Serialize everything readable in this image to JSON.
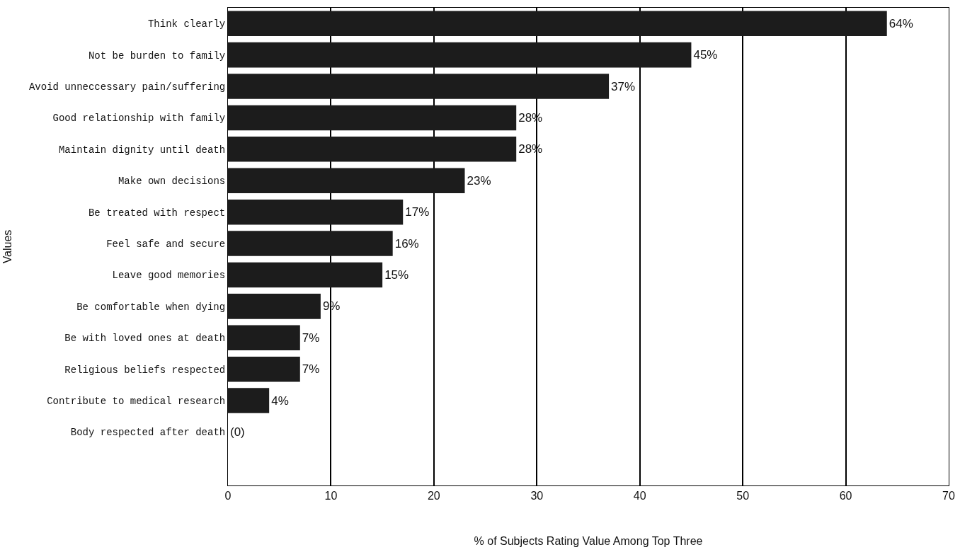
{
  "chart_data": {
    "type": "bar",
    "orientation": "horizontal",
    "xlabel": "% of Subjects Rating Value Among Top Three",
    "ylabel": "Values",
    "categories": [
      "Think clearly",
      "Not be burden to family",
      "Avoid unneccessary pain/suffering",
      "Good relationship with family",
      "Maintain dignity until death",
      "Make own decisions",
      "Be treated with respect",
      "Feel safe and secure",
      "Leave good memories",
      "Be comfortable when dying",
      "Be with loved ones at death",
      "Religious beliefs respected",
      "Contribute to medical research",
      "Body respected after death"
    ],
    "values": [
      64,
      45,
      37,
      28,
      28,
      23,
      17,
      16,
      15,
      9,
      7,
      7,
      4,
      0
    ],
    "value_labels": [
      "64%",
      "45%",
      "37%",
      "28%",
      "28%",
      "23%",
      "17%",
      "16%",
      "15%",
      "9%",
      "7%",
      "7%",
      "4%",
      "(0)"
    ],
    "color": "#1c1c1c",
    "xlim": [
      0,
      70
    ],
    "xticks": [
      0,
      10,
      20,
      30,
      40,
      50,
      60,
      70
    ],
    "grid": "x"
  }
}
